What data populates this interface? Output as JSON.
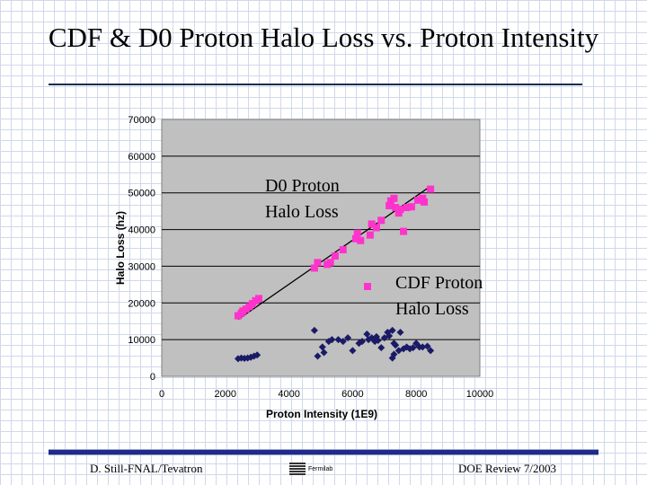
{
  "slide": {
    "title": "CDF & D0 Proton Halo Loss vs. Proton Intensity",
    "footer_left": "D. Still-FNAL/Tevatron",
    "footer_right": "DOE Review 7/2003",
    "logo_text": "Fermilab"
  },
  "chart_data": {
    "type": "scatter",
    "title": "",
    "xlabel": "Proton Intensity (1E9)",
    "ylabel": "Halo Loss (hz)",
    "xlim": [
      0,
      10000
    ],
    "ylim": [
      0,
      70000
    ],
    "xticks": [
      "0",
      "2000",
      "4000",
      "6000",
      "8000",
      "10000"
    ],
    "yticks": [
      "0",
      "10000",
      "20000",
      "30000",
      "40000",
      "50000",
      "60000",
      "70000"
    ],
    "grid": "horizontal",
    "plot_background": "#c0c0c0",
    "annotations": [
      {
        "text_lines": [
          "D0 Proton",
          "Halo Loss"
        ],
        "series": "D0 Proton Halo Loss"
      },
      {
        "text_lines": [
          "CDF Proton",
          "Halo Loss"
        ],
        "series": "CDF Proton Halo Loss"
      }
    ],
    "series": [
      {
        "name": "D0 Proton Halo Loss",
        "marker": "square",
        "color": "#ff33cc",
        "points": [
          [
            2400,
            16500
          ],
          [
            2500,
            17200
          ],
          [
            2550,
            17800
          ],
          [
            2650,
            18300
          ],
          [
            2750,
            19000
          ],
          [
            2850,
            19800
          ],
          [
            2950,
            20600
          ],
          [
            3050,
            21200
          ],
          [
            4800,
            29500
          ],
          [
            4900,
            31000
          ],
          [
            5200,
            30500
          ],
          [
            5300,
            31000
          ],
          [
            5450,
            32800
          ],
          [
            5700,
            34500
          ],
          [
            6100,
            37500
          ],
          [
            6150,
            39000
          ],
          [
            6250,
            37000
          ],
          [
            6550,
            38500
          ],
          [
            6600,
            41500
          ],
          [
            6750,
            40500
          ],
          [
            6900,
            42500
          ],
          [
            7150,
            46500
          ],
          [
            7200,
            47800
          ],
          [
            7300,
            48500
          ],
          [
            7350,
            46000
          ],
          [
            7450,
            44500
          ],
          [
            7500,
            45500
          ],
          [
            7600,
            39500
          ],
          [
            7700,
            46000
          ],
          [
            7850,
            46200
          ],
          [
            8050,
            48000
          ],
          [
            8200,
            48500
          ],
          [
            8250,
            47500
          ],
          [
            8450,
            51000
          ]
        ]
      },
      {
        "name": "CDF Proton Halo Loss",
        "marker": "diamond",
        "color": "#1a1a66",
        "points": [
          [
            2400,
            4800
          ],
          [
            2500,
            5000
          ],
          [
            2600,
            4900
          ],
          [
            2700,
            5000
          ],
          [
            2800,
            5200
          ],
          [
            2900,
            5500
          ],
          [
            3000,
            5800
          ],
          [
            4800,
            12500
          ],
          [
            4900,
            5500
          ],
          [
            5050,
            8000
          ],
          [
            5100,
            6500
          ],
          [
            5250,
            9500
          ],
          [
            5350,
            10000
          ],
          [
            5550,
            10000
          ],
          [
            5700,
            9500
          ],
          [
            5850,
            10500
          ],
          [
            6000,
            7000
          ],
          [
            6200,
            9000
          ],
          [
            6300,
            9500
          ],
          [
            6450,
            11500
          ],
          [
            6500,
            10000
          ],
          [
            6600,
            10500
          ],
          [
            6700,
            9500
          ],
          [
            6750,
            10800
          ],
          [
            6800,
            9800
          ],
          [
            6900,
            7800
          ],
          [
            7000,
            10500
          ],
          [
            7100,
            12000
          ],
          [
            7150,
            11000
          ],
          [
            7250,
            12500
          ],
          [
            7300,
            9000
          ],
          [
            7350,
            8500
          ],
          [
            7250,
            5000
          ],
          [
            7300,
            6000
          ],
          [
            7450,
            7000
          ],
          [
            7600,
            7500
          ],
          [
            7700,
            8000
          ],
          [
            7800,
            7500
          ],
          [
            7900,
            7800
          ],
          [
            8000,
            9000
          ],
          [
            8100,
            8000
          ],
          [
            8200,
            8000
          ],
          [
            8350,
            8200
          ],
          [
            8450,
            7000
          ],
          [
            7500,
            12000
          ]
        ]
      }
    ],
    "trendline": {
      "series": "D0 Proton Halo Loss",
      "x": [
        2400,
        8400
      ],
      "y": [
        15500,
        51500
      ],
      "color": "#000000"
    }
  }
}
